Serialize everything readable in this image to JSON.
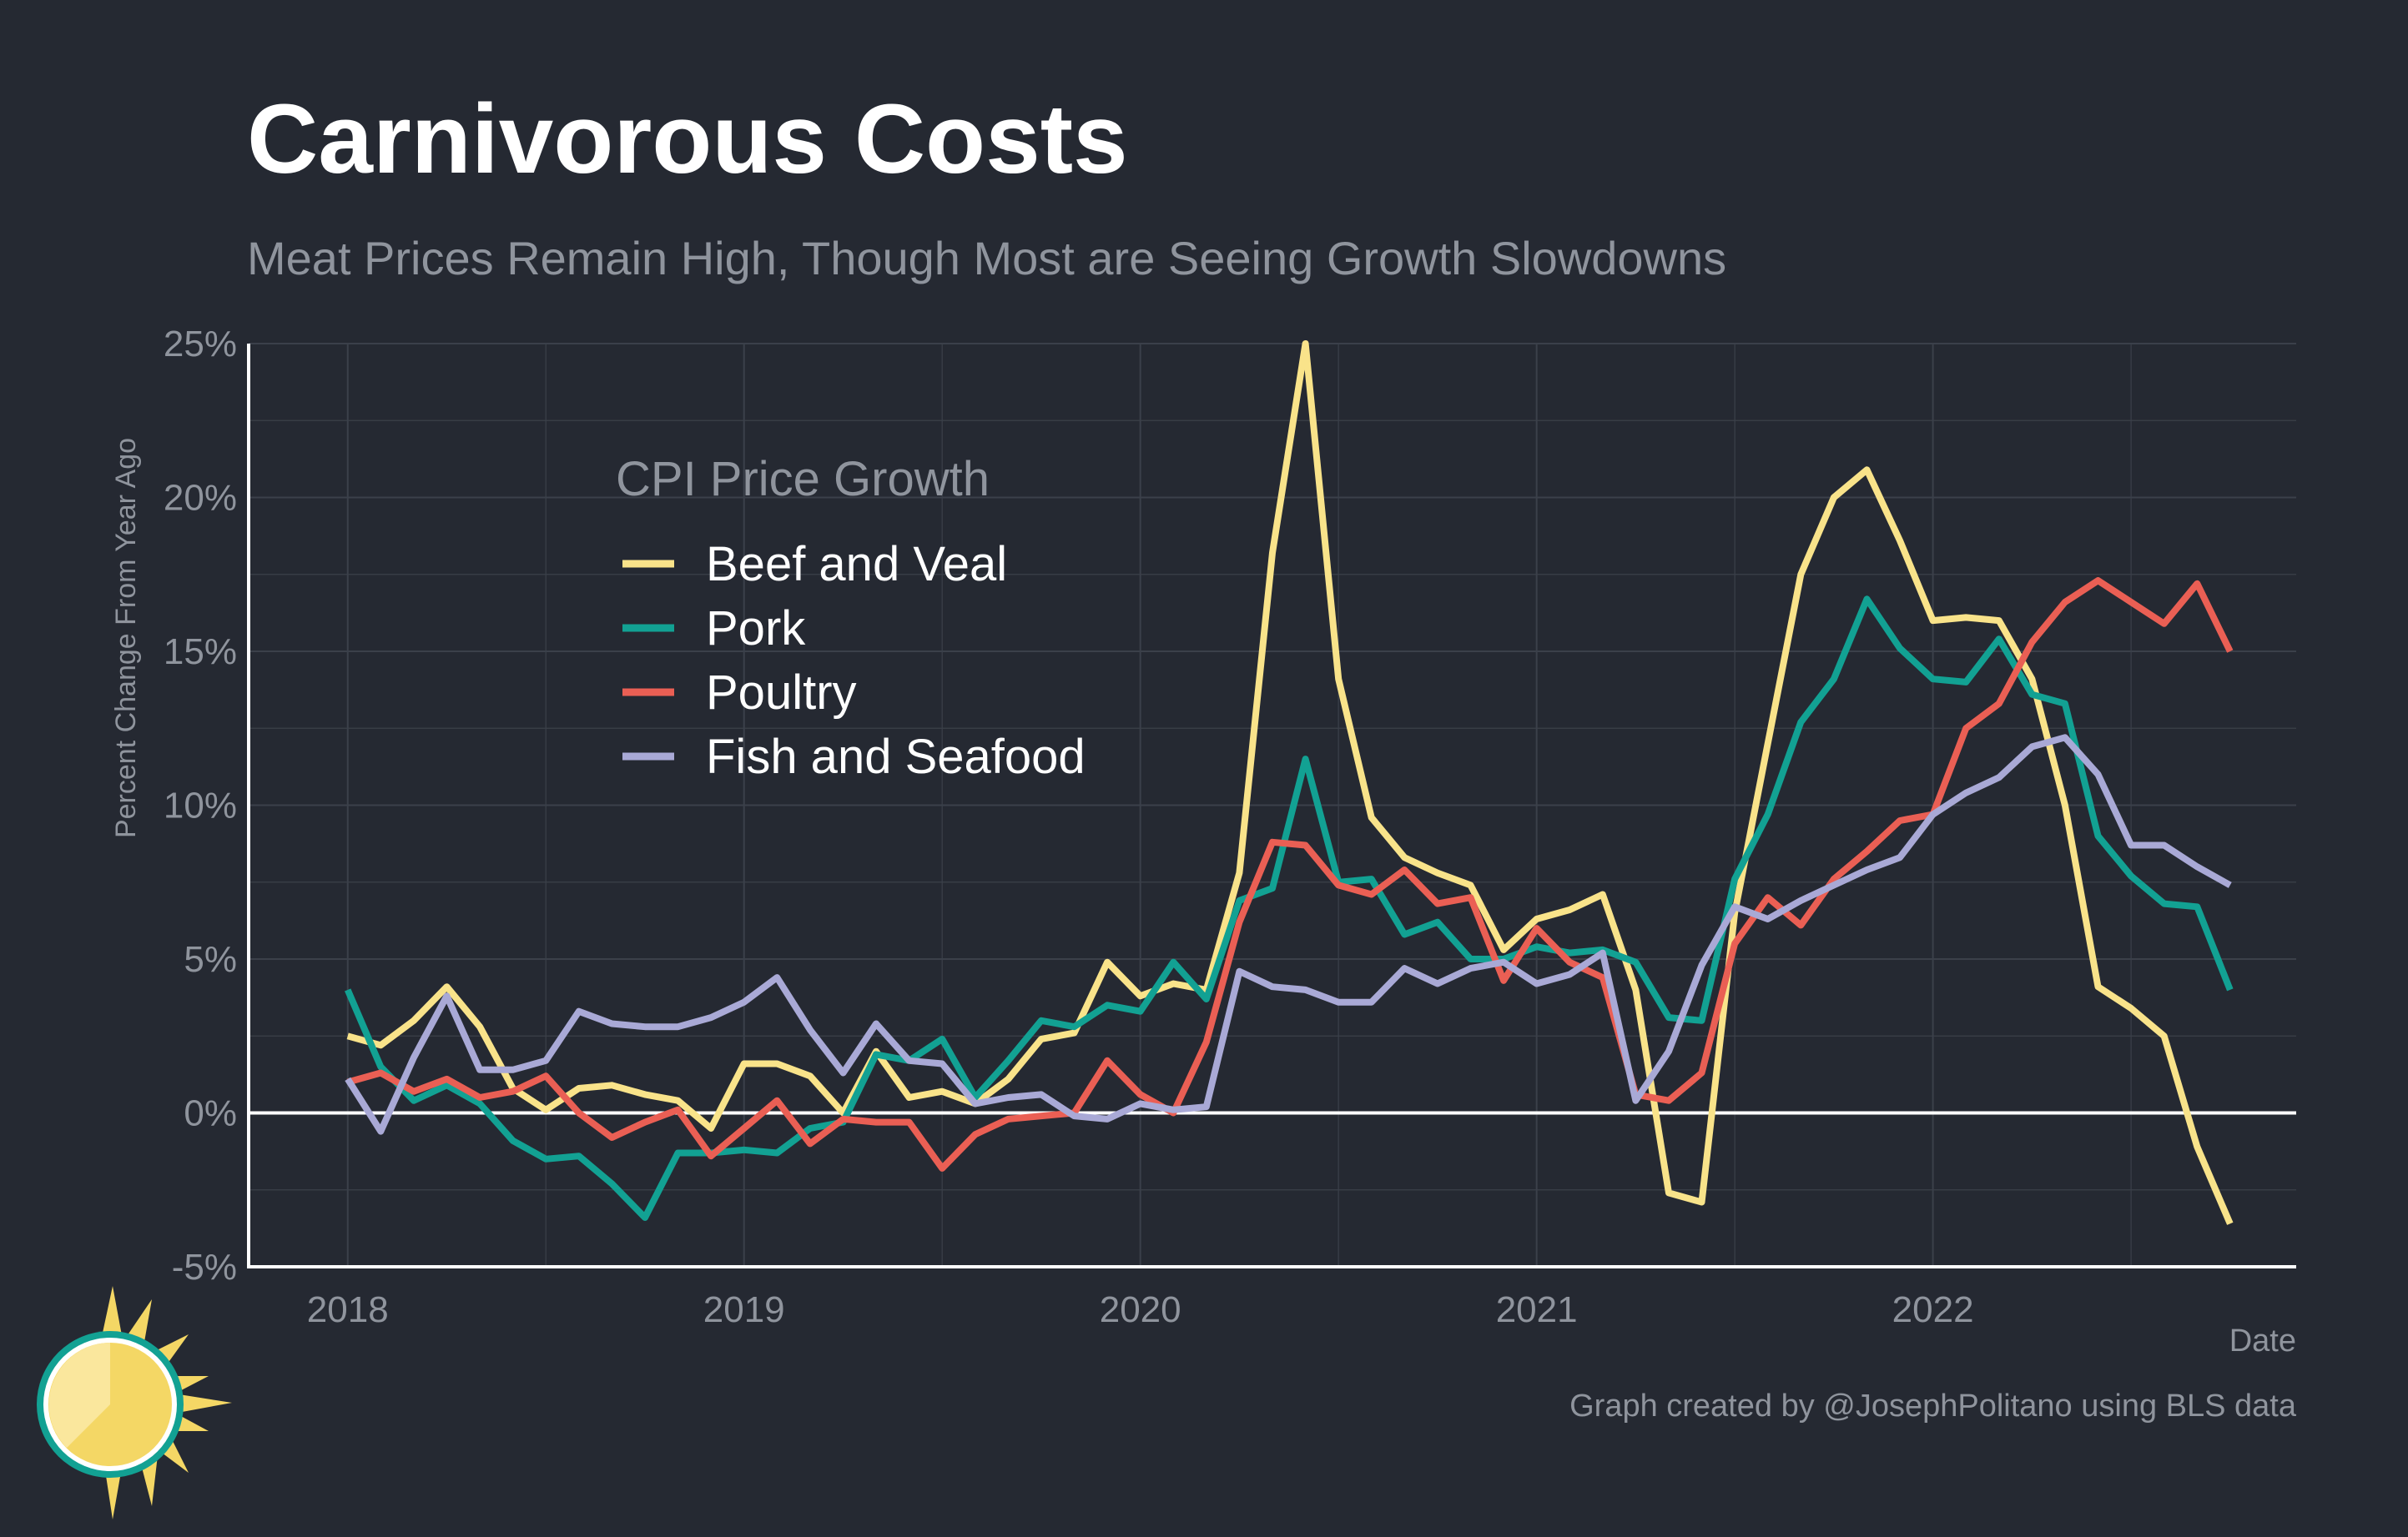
{
  "title": "Carnivorous Costs",
  "subtitle": "Meat Prices Remain High, Though Most are Seeing Growth Slowdowns",
  "caption": "Graph created by @JosephPolitano using BLS data",
  "colors": {
    "background": "#252932",
    "grid": "#3b404a",
    "axis": "#ffffff",
    "text_muted": "#8f949d"
  },
  "logo": {
    "icon": "sun-logo-icon"
  },
  "chart_data": {
    "type": "line",
    "xlabel": "Date",
    "ylabel": "Percent Change From Year Ago",
    "x_tick_labels": [
      "2018",
      "2019",
      "2020",
      "2021",
      "2022"
    ],
    "y_tick_labels": [
      "-5%",
      "0%",
      "5%",
      "10%",
      "15%",
      "20%",
      "25%"
    ],
    "y_ticks": [
      -5,
      0,
      5,
      10,
      15,
      20,
      25
    ],
    "x_ticks": [
      "2018-01",
      "2019-01",
      "2020-01",
      "2021-01",
      "2022-01"
    ],
    "xlim": [
      "2017-10",
      "2022-12"
    ],
    "ylim": [
      -5,
      25
    ],
    "grid": true,
    "zero_line": true,
    "legend": {
      "title": "CPI Price Growth",
      "position": "top-left"
    },
    "x_start": "2018-01",
    "x_end": "2022-09",
    "x_frequency": "monthly",
    "series": [
      {
        "name": "Beef and Veal",
        "color": "#f9e38a",
        "values": [
          2.5,
          2.2,
          3.0,
          4.1,
          2.8,
          0.8,
          0.1,
          0.8,
          0.9,
          0.6,
          0.4,
          -0.5,
          1.6,
          1.6,
          1.2,
          0.0,
          2.0,
          0.5,
          0.7,
          0.3,
          1.1,
          2.4,
          2.6,
          4.9,
          3.8,
          4.2,
          4.0,
          7.8,
          18.2,
          25.0,
          14.1,
          9.6,
          8.3,
          7.8,
          7.4,
          5.3,
          6.3,
          6.6,
          7.1,
          4.0,
          -2.6,
          -2.9,
          6.5,
          12.0,
          17.5,
          20.0,
          20.9,
          18.6,
          16.0,
          16.1,
          16.0,
          14.1,
          10.0,
          4.1,
          3.4,
          2.5,
          -1.1,
          -3.6
        ]
      },
      {
        "name": "Pork",
        "color": "#12a193",
        "values": [
          4.0,
          1.5,
          0.4,
          0.9,
          0.3,
          -0.9,
          -1.5,
          -1.4,
          -2.3,
          -3.4,
          -1.3,
          -1.3,
          -1.2,
          -1.3,
          -0.5,
          -0.3,
          1.9,
          1.7,
          2.4,
          0.5,
          1.7,
          3.0,
          2.8,
          3.5,
          3.3,
          4.9,
          3.7,
          6.9,
          7.3,
          11.5,
          7.5,
          7.6,
          5.8,
          6.2,
          5.0,
          5.0,
          5.4,
          5.2,
          5.3,
          4.9,
          3.1,
          3.0,
          7.6,
          9.7,
          12.7,
          14.1,
          16.7,
          15.1,
          14.1,
          14.0,
          15.4,
          13.6,
          13.3,
          9.0,
          7.7,
          6.8,
          6.7,
          4.0
        ]
      },
      {
        "name": "Poultry",
        "color": "#ea5f54",
        "values": [
          1.0,
          1.3,
          0.7,
          1.1,
          0.5,
          0.7,
          1.2,
          0.0,
          -0.8,
          -0.3,
          0.1,
          -1.4,
          -0.5,
          0.4,
          -1.0,
          -0.2,
          -0.3,
          -0.3,
          -1.8,
          -0.7,
          -0.2,
          -0.1,
          0.0,
          1.7,
          0.6,
          0.0,
          2.3,
          6.2,
          8.8,
          8.7,
          7.4,
          7.1,
          7.9,
          6.8,
          7.0,
          4.3,
          6.0,
          4.9,
          4.4,
          0.6,
          0.4,
          1.3,
          5.5,
          7.0,
          6.1,
          7.6,
          8.5,
          9.5,
          9.7,
          12.5,
          13.3,
          15.3,
          16.6,
          17.3,
          16.6,
          15.9,
          17.2,
          15.0
        ]
      },
      {
        "name": "Fish and Seafood",
        "color": "#a9a9d6",
        "values": [
          1.1,
          -0.6,
          1.8,
          3.8,
          1.4,
          1.4,
          1.7,
          3.3,
          2.9,
          2.8,
          2.8,
          3.1,
          3.6,
          4.4,
          2.7,
          1.3,
          2.9,
          1.7,
          1.6,
          0.3,
          0.5,
          0.6,
          -0.1,
          -0.2,
          0.3,
          0.1,
          0.2,
          4.6,
          4.1,
          4.0,
          3.6,
          3.6,
          4.7,
          4.2,
          4.7,
          4.9,
          4.2,
          4.5,
          5.2,
          0.4,
          2.0,
          4.8,
          6.7,
          6.3,
          6.9,
          7.4,
          7.9,
          8.3,
          9.7,
          10.4,
          10.9,
          11.9,
          12.2,
          11.0,
          8.7,
          8.7,
          8.0,
          7.4
        ]
      }
    ]
  }
}
